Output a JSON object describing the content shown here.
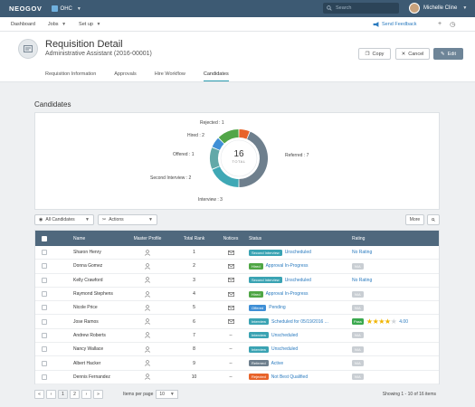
{
  "topbar": {
    "brand": "NEOGOV",
    "org": "OHC",
    "search_placeholder": "Search",
    "user_name": "Michelle Cline"
  },
  "subnav": {
    "items": [
      "Dashboard",
      "Jobs",
      "Set up"
    ],
    "feedback": "Send Feedback"
  },
  "header": {
    "title": "Requisition Detail",
    "subtitle": "Administrative Assistant (2016-00001)",
    "copy_label": "Copy",
    "cancel_label": "Cancel",
    "edit_label": "Edit",
    "tabs": [
      "Requisition Information",
      "Approvals",
      "Hire Workflow",
      "Candidates"
    ],
    "active_tab": "Candidates"
  },
  "candidates": {
    "section_title": "Candidates",
    "total": "16",
    "total_label": "TOTAL"
  },
  "chart_data": {
    "type": "pie",
    "subtype": "donut",
    "center_value": 16,
    "center_label": "TOTAL",
    "slices": [
      {
        "label": "Rejected",
        "value": 1,
        "color": "#e8632a"
      },
      {
        "label": "Referred",
        "value": 7,
        "color": "#6e7f8d"
      },
      {
        "label": "Interview",
        "value": 3,
        "color": "#3fa8b5"
      },
      {
        "label": "Second Interview",
        "value": 2,
        "color": "#63a9a8"
      },
      {
        "label": "Offered",
        "value": 1,
        "color": "#3f8fd6"
      },
      {
        "label": "Hired",
        "value": 2,
        "color": "#52a648"
      }
    ],
    "label_text": {
      "Rejected": "Rejected : 1",
      "Referred": "Referred : 7",
      "Interview": "Interview : 3",
      "Second Interview": "Second Interview : 2",
      "Offered": "Offered : 1",
      "Hired": "Hired : 2"
    }
  },
  "toolbar": {
    "filter_label": "All Candidates",
    "actions_label": "Actions",
    "more_label": "More"
  },
  "table": {
    "headers": [
      "Name",
      "Master Profile",
      "Total Rank",
      "Notices",
      "Status",
      "Rating"
    ],
    "rows": [
      {
        "name": "Sharon Henry",
        "rank": "1",
        "notice": "mail",
        "badge": "Second Interview",
        "badge_color": "#3aa3b3",
        "status": "Unscheduled",
        "rating": "No Rating",
        "rating_type": "text"
      },
      {
        "name": "Donna Gomez",
        "rank": "2",
        "notice": "mail",
        "badge": "Hired",
        "badge_color": "#4fa645",
        "status": "Approval In-Progress",
        "rating": "N/A",
        "rating_type": "na"
      },
      {
        "name": "Kelly Crawford",
        "rank": "3",
        "notice": "mail",
        "badge": "Second Interview",
        "badge_color": "#3aa3b3",
        "status": "Unscheduled",
        "rating": "No Rating",
        "rating_type": "text"
      },
      {
        "name": "Raymond Stephens",
        "rank": "4",
        "notice": "mail",
        "badge": "Hired",
        "badge_color": "#4fa645",
        "status": "Approval In-Progress",
        "rating": "N/A",
        "rating_type": "na"
      },
      {
        "name": "Nicole Price",
        "rank": "5",
        "notice": "mail",
        "badge": "Offered",
        "badge_color": "#3f8fd6",
        "status": "Pending",
        "rating": "N/A",
        "rating_type": "na"
      },
      {
        "name": "Jose Ramos",
        "rank": "6",
        "notice": "mail",
        "badge": "Interview",
        "badge_color": "#3aa3b3",
        "status": "Scheduled for 05/19/2016 ...",
        "rating": "4.00",
        "rating_type": "stars",
        "pass_label": "Pass",
        "stars": 4
      },
      {
        "name": "Andrew Roberts",
        "rank": "7",
        "notice": "--",
        "badge": "Interview",
        "badge_color": "#3aa3b3",
        "status": "Unscheduled",
        "rating": "N/A",
        "rating_type": "na"
      },
      {
        "name": "Nancy Wallace",
        "rank": "8",
        "notice": "--",
        "badge": "Interview",
        "badge_color": "#3aa3b3",
        "status": "Unscheduled",
        "rating": "N/A",
        "rating_type": "na"
      },
      {
        "name": "Albert Hacker",
        "rank": "9",
        "notice": "--",
        "badge": "Referred",
        "badge_color": "#6e7f8d",
        "status": "Active",
        "rating": "N/A",
        "rating_type": "na"
      },
      {
        "name": "Dennis Fernandez",
        "rank": "10",
        "notice": "--",
        "badge": "Rejected",
        "badge_color": "#e8632a",
        "status": "Not Best Qualified",
        "rating": "N/A",
        "rating_type": "na"
      }
    ]
  },
  "pagination": {
    "pages": [
      "1",
      "2"
    ],
    "current": "1",
    "per_page_label": "Items per page",
    "per_page": "10",
    "showing": "Showing 1 - 10 of 16 items"
  }
}
